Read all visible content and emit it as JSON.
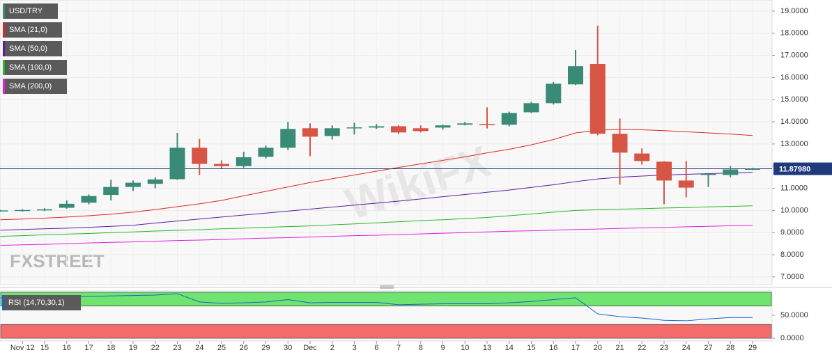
{
  "chart_data": {
    "type": "candlestick",
    "symbol": "USD/TRY",
    "logo": "FXSTREET",
    "watermark": "WikiFX",
    "categories": [
      null,
      "Nov 12",
      "15",
      "16",
      "17",
      "18",
      "19",
      "22",
      "23",
      "24",
      "25",
      "26",
      "29",
      "30",
      "Dec",
      "2",
      "3",
      "6",
      "7",
      "8",
      "9",
      "10",
      "13",
      "14",
      "15",
      "16",
      "17",
      "20",
      "21",
      "22",
      "23",
      "24",
      "27",
      "28",
      "29"
    ],
    "open": [
      9.97,
      9.98,
      10.0,
      10.12,
      10.35,
      10.7,
      11.06,
      11.2,
      11.41,
      12.83,
      12.1,
      12.0,
      12.42,
      12.83,
      13.71,
      13.36,
      13.72,
      13.74,
      13.8,
      13.71,
      13.74,
      13.87,
      13.9,
      13.87,
      14.43,
      14.84,
      15.69,
      16.61,
      13.46,
      12.57,
      12.2,
      11.35,
      11.6,
      11.6,
      11.84
    ],
    "high": [
      10.02,
      10.05,
      10.1,
      10.45,
      10.72,
      11.38,
      11.35,
      11.5,
      13.5,
      13.23,
      12.26,
      12.65,
      12.93,
      14.0,
      13.93,
      13.84,
      13.96,
      13.9,
      13.84,
      13.84,
      13.87,
      14.0,
      14.65,
      14.46,
      14.9,
      15.79,
      17.24,
      18.34,
      14.15,
      12.8,
      12.23,
      12.23,
      11.65,
      12.0,
      11.92
    ],
    "low": [
      9.95,
      9.95,
      9.97,
      10.08,
      10.28,
      10.45,
      10.88,
      11.0,
      11.38,
      11.6,
      11.9,
      11.93,
      12.35,
      12.73,
      12.45,
      13.2,
      13.43,
      13.68,
      13.46,
      13.52,
      13.65,
      13.84,
      13.7,
      13.8,
      14.4,
      14.78,
      15.66,
      13.39,
      11.16,
      12.07,
      10.28,
      10.59,
      11.06,
      11.5,
      11.82
    ],
    "close": [
      10.0,
      10.02,
      10.05,
      10.3,
      10.65,
      11.06,
      11.25,
      11.4,
      12.83,
      12.1,
      12.0,
      12.4,
      12.83,
      13.68,
      13.33,
      13.71,
      13.75,
      13.8,
      13.52,
      13.58,
      13.84,
      13.93,
      13.86,
      14.4,
      14.84,
      15.72,
      16.51,
      13.46,
      12.61,
      12.23,
      11.35,
      11.03,
      11.65,
      11.85,
      11.8798
    ],
    "up_color": "#3a8a78",
    "down_color": "#d65545",
    "last_price": {
      "value": 11.8798,
      "label": "11.87980"
    },
    "last_price_color": "#1f3a7a",
    "overlays": [
      {
        "name": "SMA (21,0)",
        "color": "#e0261e",
        "values": [
          9.58,
          9.61,
          9.65,
          9.7,
          9.76,
          9.83,
          9.92,
          10.04,
          10.17,
          10.3,
          10.45,
          10.66,
          10.86,
          11.06,
          11.26,
          11.43,
          11.6,
          11.77,
          11.94,
          12.1,
          12.26,
          12.42,
          12.6,
          12.76,
          12.96,
          13.2,
          13.5,
          13.62,
          13.66,
          13.64,
          13.6,
          13.55,
          13.5,
          13.45,
          13.38
        ]
      },
      {
        "name": "SMA (50,0)",
        "color": "#5a1ea0",
        "values": [
          9.11,
          9.14,
          9.17,
          9.2,
          9.24,
          9.28,
          9.33,
          9.43,
          9.52,
          9.61,
          9.7,
          9.79,
          9.88,
          9.97,
          10.06,
          10.15,
          10.24,
          10.33,
          10.42,
          10.52,
          10.62,
          10.72,
          10.82,
          10.92,
          11.04,
          11.16,
          11.3,
          11.42,
          11.5,
          11.55,
          11.6,
          11.63,
          11.66,
          11.69,
          11.72
        ]
      },
      {
        "name": "SMA (100,0)",
        "color": "#25b825",
        "values": [
          8.83,
          8.86,
          8.9,
          8.93,
          8.96,
          9.0,
          9.03,
          9.07,
          9.1,
          9.13,
          9.17,
          9.2,
          9.24,
          9.27,
          9.3,
          9.35,
          9.39,
          9.44,
          9.49,
          9.54,
          9.58,
          9.63,
          9.68,
          9.76,
          9.84,
          9.92,
          10.0,
          10.03,
          10.06,
          10.08,
          10.11,
          10.13,
          10.16,
          10.18,
          10.21
        ]
      },
      {
        "name": "SMA (200,0)",
        "color": "#e020e0",
        "values": [
          8.42,
          8.45,
          8.47,
          8.5,
          8.53,
          8.56,
          8.58,
          8.61,
          8.64,
          8.66,
          8.69,
          8.72,
          8.75,
          8.77,
          8.8,
          8.83,
          8.86,
          8.88,
          8.91,
          8.94,
          8.97,
          9.0,
          9.03,
          9.06,
          9.08,
          9.11,
          9.14,
          9.16,
          9.19,
          9.21,
          9.23,
          9.26,
          9.28,
          9.31,
          9.33
        ]
      }
    ],
    "ylim": [
      6.65,
      19.5
    ],
    "yticks": [
      {
        "value": 7,
        "label": "7.0000"
      },
      {
        "value": 8,
        "label": "8.0000"
      },
      {
        "value": 9,
        "label": "9.0000"
      },
      {
        "value": 10,
        "label": "10.0000"
      },
      {
        "value": 11,
        "label": "11.0000"
      },
      {
        "value": 12,
        "label": "12.0000"
      },
      {
        "value": 13,
        "label": "13.0000"
      },
      {
        "value": 14,
        "label": "14.0000"
      },
      {
        "value": 15,
        "label": "15.0000"
      },
      {
        "value": 16,
        "label": "16.0000"
      },
      {
        "value": 17,
        "label": "17.0000"
      },
      {
        "value": 18,
        "label": "18.0000"
      },
      {
        "value": 19,
        "label": "19.0000"
      }
    ],
    "grid": true,
    "rsi": {
      "name": "RSI (14,70,30,1)",
      "color": "#1a5fd0",
      "values": [
        88,
        88,
        89,
        90,
        91,
        92,
        93,
        94,
        97,
        79,
        76,
        77,
        79,
        84,
        77,
        78,
        78,
        78,
        73,
        74,
        75,
        75,
        75,
        77,
        80,
        84,
        88,
        53,
        47,
        44,
        39,
        38,
        42,
        45,
        45
      ],
      "ylim": [
        -6,
        103
      ],
      "yticks": [
        {
          "value": 0,
          "label": "0.0000"
        },
        {
          "value": 50,
          "label": "50.0000"
        }
      ],
      "upper_band": [
        70,
        100
      ],
      "upper_color": "#6fe46f",
      "lower_band": [
        0,
        30
      ],
      "lower_color": "#f36b6b"
    }
  }
}
